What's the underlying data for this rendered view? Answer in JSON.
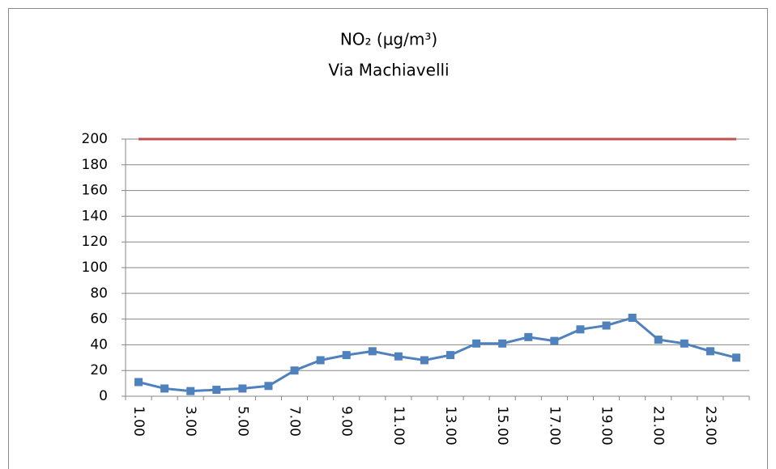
{
  "chart_data": {
    "type": "line",
    "title": "NO₂ (µg/m³)",
    "subtitle": "Via Machiavelli",
    "categories": [
      "1.00",
      null,
      "3.00",
      null,
      "5.00",
      null,
      "7.00",
      null,
      "9.00",
      null,
      "11.00",
      null,
      "13.00",
      null,
      "15.00",
      null,
      "17.00",
      null,
      "19.00",
      null,
      "21.00",
      null,
      "23.00",
      null
    ],
    "series": [
      {
        "color": "#4f81bd",
        "marker": "square",
        "values": [
          11,
          6,
          4,
          5,
          6,
          8,
          20,
          28,
          32,
          35,
          31,
          28,
          32,
          41,
          41,
          46,
          43,
          52,
          55,
          61,
          44,
          41,
          35,
          30
        ]
      },
      {
        "color": "#c0504d",
        "values": [
          200,
          200,
          200,
          200,
          200,
          200,
          200,
          200,
          200,
          200,
          200,
          200,
          200,
          200,
          200,
          200,
          200,
          200,
          200,
          200,
          200,
          200,
          200,
          200
        ]
      }
    ],
    "ylim": [
      0,
      200
    ],
    "yticks": [
      0,
      20,
      40,
      60,
      80,
      100,
      120,
      140,
      160,
      180,
      200
    ],
    "grid": true
  }
}
